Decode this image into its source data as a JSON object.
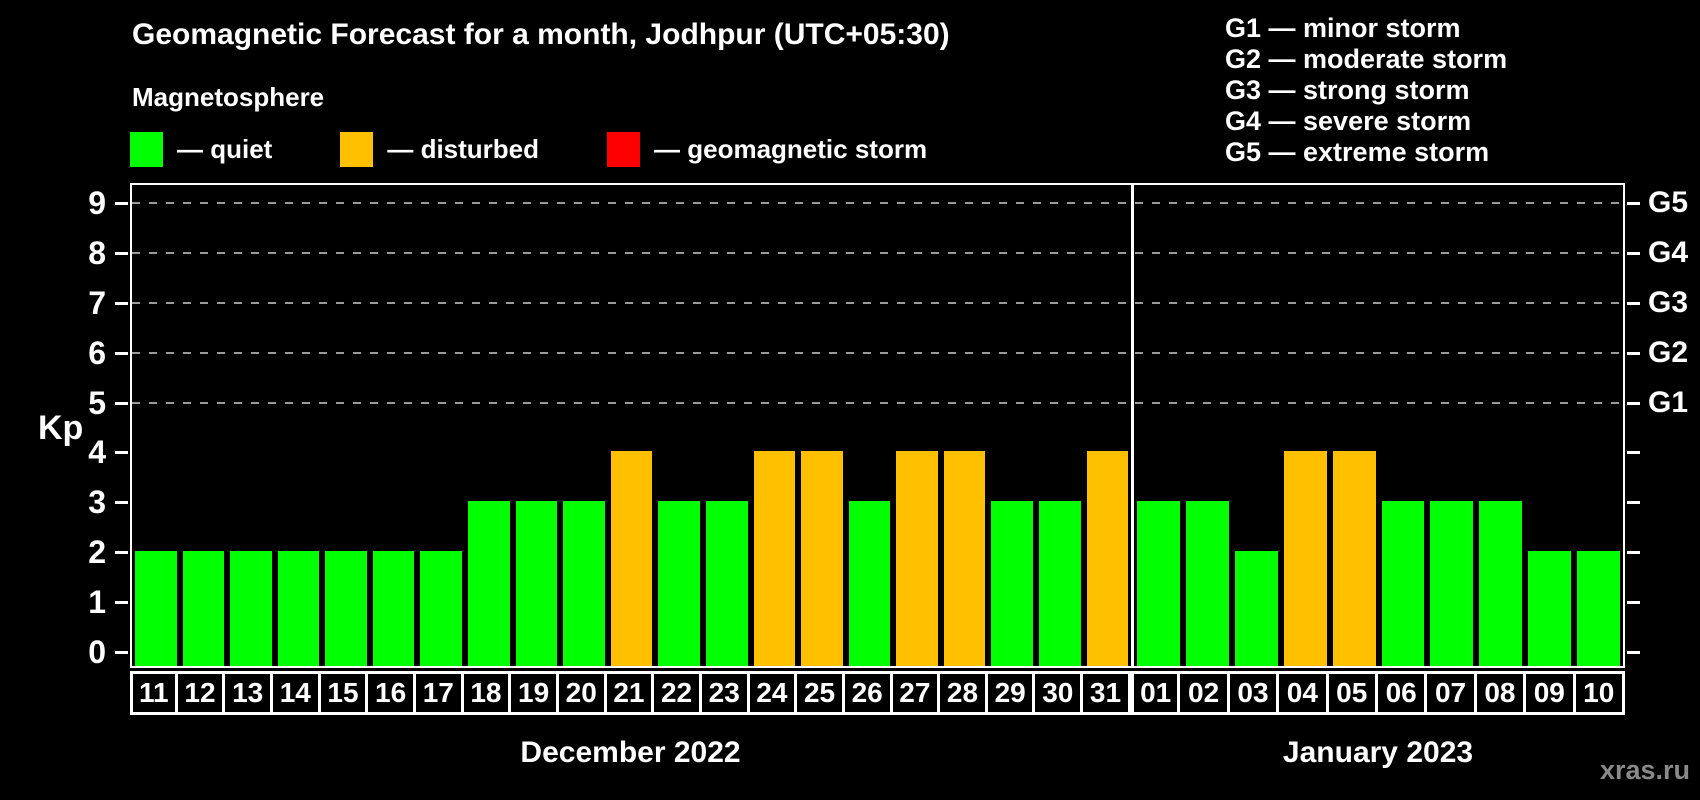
{
  "header": {
    "title": "Geomagnetic Forecast for a month, Jodhpur (UTC+05:30)",
    "subtitle": "Magnetosphere",
    "legend": [
      {
        "name": "quiet",
        "color": "#00ff00",
        "label": "— quiet"
      },
      {
        "name": "disturbed",
        "color": "#ffc000",
        "label": "— disturbed"
      },
      {
        "name": "storm",
        "color": "#ff0000",
        "label": "— geomagnetic storm"
      }
    ],
    "g_scale_legend": [
      "G1 — minor storm",
      "G2 — moderate storm",
      "G3 — strong storm",
      "G4 — severe storm",
      "G5 — extreme storm"
    ]
  },
  "chart_data": {
    "type": "bar",
    "title": "Geomagnetic Forecast for a month, Jodhpur (UTC+05:30)",
    "ylabel": "Kp",
    "ylim": [
      0,
      9
    ],
    "yticks": [
      0,
      1,
      2,
      3,
      4,
      5,
      6,
      7,
      8,
      9
    ],
    "gridlines_at": [
      5,
      6,
      7,
      8,
      9
    ],
    "grid": "dashed",
    "legend_position": "top",
    "right_axis_labels": [
      {
        "value": 5,
        "label": "G1"
      },
      {
        "value": 6,
        "label": "G2"
      },
      {
        "value": 7,
        "label": "G3"
      },
      {
        "value": 8,
        "label": "G4"
      },
      {
        "value": 9,
        "label": "G5"
      }
    ],
    "status_colors": {
      "quiet": "#00ff00",
      "disturbed": "#ffc000",
      "storm": "#ff0000"
    },
    "months": [
      {
        "label": "December 2022",
        "days": [
          {
            "date": "11",
            "kp": 2,
            "status": "quiet"
          },
          {
            "date": "12",
            "kp": 2,
            "status": "quiet"
          },
          {
            "date": "13",
            "kp": 2,
            "status": "quiet"
          },
          {
            "date": "14",
            "kp": 2,
            "status": "quiet"
          },
          {
            "date": "15",
            "kp": 2,
            "status": "quiet"
          },
          {
            "date": "16",
            "kp": 2,
            "status": "quiet"
          },
          {
            "date": "17",
            "kp": 2,
            "status": "quiet"
          },
          {
            "date": "18",
            "kp": 3,
            "status": "quiet"
          },
          {
            "date": "19",
            "kp": 3,
            "status": "quiet"
          },
          {
            "date": "20",
            "kp": 3,
            "status": "quiet"
          },
          {
            "date": "21",
            "kp": 4,
            "status": "disturbed"
          },
          {
            "date": "22",
            "kp": 3,
            "status": "quiet"
          },
          {
            "date": "23",
            "kp": 3,
            "status": "quiet"
          },
          {
            "date": "24",
            "kp": 4,
            "status": "disturbed"
          },
          {
            "date": "25",
            "kp": 4,
            "status": "disturbed"
          },
          {
            "date": "26",
            "kp": 3,
            "status": "quiet"
          },
          {
            "date": "27",
            "kp": 4,
            "status": "disturbed"
          },
          {
            "date": "28",
            "kp": 4,
            "status": "disturbed"
          },
          {
            "date": "29",
            "kp": 3,
            "status": "quiet"
          },
          {
            "date": "30",
            "kp": 3,
            "status": "quiet"
          },
          {
            "date": "31",
            "kp": 4,
            "status": "disturbed"
          }
        ]
      },
      {
        "label": "January 2023",
        "days": [
          {
            "date": "01",
            "kp": 3,
            "status": "quiet"
          },
          {
            "date": "02",
            "kp": 3,
            "status": "quiet"
          },
          {
            "date": "03",
            "kp": 2,
            "status": "quiet"
          },
          {
            "date": "04",
            "kp": 4,
            "status": "disturbed"
          },
          {
            "date": "05",
            "kp": 4,
            "status": "disturbed"
          },
          {
            "date": "06",
            "kp": 3,
            "status": "quiet"
          },
          {
            "date": "07",
            "kp": 3,
            "status": "quiet"
          },
          {
            "date": "08",
            "kp": 3,
            "status": "quiet"
          },
          {
            "date": "09",
            "kp": 2,
            "status": "quiet"
          },
          {
            "date": "10",
            "kp": 2,
            "status": "quiet"
          }
        ]
      }
    ]
  },
  "watermark": "xras.ru"
}
